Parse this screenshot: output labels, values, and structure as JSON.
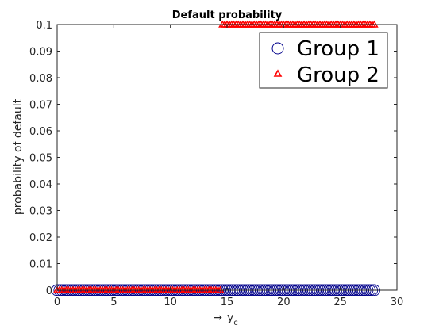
{
  "chart_data": {
    "type": "scatter",
    "title": "Default probability",
    "xlabel_arrow": "→",
    "xlabel_main": "y",
    "xlabel_sub": "c",
    "ylabel": "probability of default",
    "xlim": [
      0,
      30
    ],
    "ylim": [
      0,
      0.1
    ],
    "xticks": [
      0,
      5,
      10,
      15,
      20,
      25,
      30
    ],
    "xtick_labels": [
      "0",
      "5",
      "10",
      "15",
      "20",
      "25",
      "30"
    ],
    "yticks": [
      0,
      0.01,
      0.02,
      0.03,
      0.04,
      0.05,
      0.06,
      0.07,
      0.08,
      0.09,
      0.1
    ],
    "ytick_labels": [
      "0",
      "0.01",
      "0.02",
      "0.03",
      "0.04",
      "0.05",
      "0.06",
      "0.07",
      "0.08",
      "0.09",
      "0.1"
    ],
    "grid": false,
    "legend_position": "top-right",
    "series": [
      {
        "name": "Group 1",
        "marker": "circle",
        "color": "#00008b",
        "segments": [
          {
            "x_start": 0,
            "x_end": 28,
            "x_step": 0.2,
            "y": 0
          }
        ]
      },
      {
        "name": "Group 2",
        "marker": "triangle",
        "color": "#ff0000",
        "segments": [
          {
            "x_start": 0,
            "x_end": 14.4,
            "x_step": 0.2,
            "y": 0
          },
          {
            "x_start": 14.6,
            "x_end": 28,
            "x_step": 0.2,
            "y": 0.1
          }
        ]
      }
    ]
  }
}
